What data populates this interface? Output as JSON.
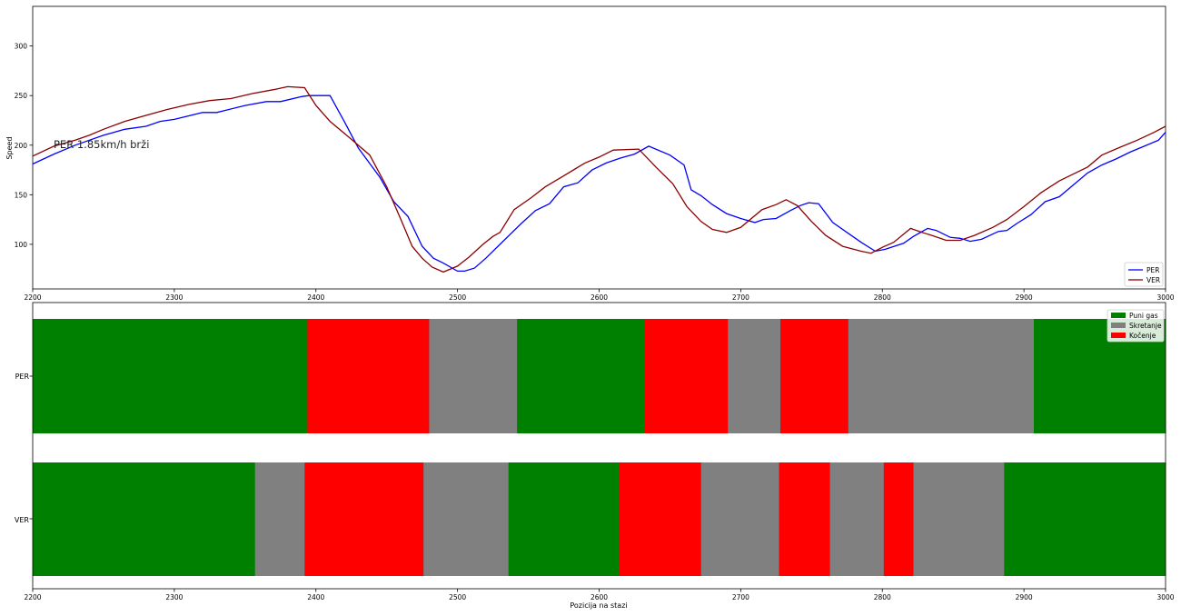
{
  "chart_data": [
    {
      "type": "line",
      "title": "",
      "xlabel": "",
      "ylabel": "Speed",
      "xlim": [
        2200,
        3000
      ],
      "ylim": [
        55,
        340
      ],
      "x_ticks": [
        "2200",
        "2300",
        "2400",
        "2500",
        "2600",
        "2700",
        "2800",
        "2900",
        "3000"
      ],
      "y_ticks": [
        "100",
        "150",
        "200",
        "250",
        "300"
      ],
      "annotation": "PER 1.85km/h brži",
      "legend_position": "lower right",
      "series": [
        {
          "name": "PER",
          "color": "#0000ff",
          "points": [
            [
              2200,
              181
            ],
            [
              2215,
              191
            ],
            [
              2230,
              200
            ],
            [
              2250,
              210
            ],
            [
              2265,
              216
            ],
            [
              2280,
              219
            ],
            [
              2290,
              224
            ],
            [
              2300,
              226
            ],
            [
              2320,
              233
            ],
            [
              2330,
              233
            ],
            [
              2350,
              240
            ],
            [
              2365,
              244
            ],
            [
              2375,
              244
            ],
            [
              2390,
              249
            ],
            [
              2395,
              250
            ],
            [
              2410,
              250
            ],
            [
              2420,
              224
            ],
            [
              2430,
              197
            ],
            [
              2445,
              168
            ],
            [
              2455,
              143
            ],
            [
              2465,
              128
            ],
            [
              2475,
              98
            ],
            [
              2483,
              86
            ],
            [
              2490,
              81
            ],
            [
              2500,
              73
            ],
            [
              2505,
              73
            ],
            [
              2512,
              76
            ],
            [
              2520,
              86
            ],
            [
              2530,
              100
            ],
            [
              2545,
              121
            ],
            [
              2555,
              134
            ],
            [
              2565,
              141
            ],
            [
              2575,
              158
            ],
            [
              2585,
              162
            ],
            [
              2595,
              175
            ],
            [
              2605,
              182
            ],
            [
              2615,
              187
            ],
            [
              2625,
              191
            ],
            [
              2635,
              199
            ],
            [
              2650,
              190
            ],
            [
              2660,
              180
            ],
            [
              2665,
              155
            ],
            [
              2672,
              149
            ],
            [
              2680,
              140
            ],
            [
              2690,
              131
            ],
            [
              2700,
              126
            ],
            [
              2710,
              122
            ],
            [
              2716,
              125
            ],
            [
              2725,
              126
            ],
            [
              2735,
              134
            ],
            [
              2742,
              139
            ],
            [
              2748,
              142
            ],
            [
              2755,
              141
            ],
            [
              2765,
              122
            ],
            [
              2775,
              112
            ],
            [
              2785,
              102
            ],
            [
              2795,
              93
            ],
            [
              2802,
              95
            ],
            [
              2815,
              101
            ],
            [
              2822,
              108
            ],
            [
              2832,
              116
            ],
            [
              2838,
              114
            ],
            [
              2848,
              107
            ],
            [
              2855,
              106
            ],
            [
              2862,
              103
            ],
            [
              2870,
              105
            ],
            [
              2882,
              113
            ],
            [
              2888,
              114
            ],
            [
              2895,
              121
            ],
            [
              2905,
              130
            ],
            [
              2915,
              143
            ],
            [
              2925,
              148
            ],
            [
              2935,
              160
            ],
            [
              2945,
              172
            ],
            [
              2955,
              180
            ],
            [
              2965,
              186
            ],
            [
              2975,
              193
            ],
            [
              2985,
              199
            ],
            [
              2995,
              205
            ],
            [
              3000,
              213
            ]
          ]
        },
        {
          "name": "VER",
          "color": "#8b0000",
          "points": [
            [
              2200,
              189
            ],
            [
              2215,
              199
            ],
            [
              2230,
              205
            ],
            [
              2240,
              210
            ],
            [
              2250,
              216
            ],
            [
              2265,
              224
            ],
            [
              2280,
              230
            ],
            [
              2295,
              236
            ],
            [
              2310,
              241
            ],
            [
              2325,
              245
            ],
            [
              2340,
              247
            ],
            [
              2355,
              252
            ],
            [
              2370,
              256
            ],
            [
              2380,
              259
            ],
            [
              2392,
              258
            ],
            [
              2400,
              240
            ],
            [
              2410,
              224
            ],
            [
              2425,
              206
            ],
            [
              2438,
              190
            ],
            [
              2450,
              158
            ],
            [
              2460,
              125
            ],
            [
              2468,
              98
            ],
            [
              2475,
              86
            ],
            [
              2482,
              77
            ],
            [
              2490,
              72
            ],
            [
              2500,
              78
            ],
            [
              2508,
              87
            ],
            [
              2518,
              100
            ],
            [
              2525,
              108
            ],
            [
              2530,
              112
            ],
            [
              2540,
              135
            ],
            [
              2552,
              147
            ],
            [
              2562,
              158
            ],
            [
              2575,
              169
            ],
            [
              2590,
              182
            ],
            [
              2600,
              188
            ],
            [
              2610,
              195
            ],
            [
              2628,
              196
            ],
            [
              2640,
              178
            ],
            [
              2652,
              161
            ],
            [
              2662,
              138
            ],
            [
              2672,
              123
            ],
            [
              2680,
              115
            ],
            [
              2690,
              112
            ],
            [
              2700,
              117
            ],
            [
              2715,
              135
            ],
            [
              2725,
              140
            ],
            [
              2732,
              145
            ],
            [
              2740,
              139
            ],
            [
              2750,
              123
            ],
            [
              2760,
              109
            ],
            [
              2772,
              98
            ],
            [
              2785,
              93
            ],
            [
              2792,
              91
            ],
            [
              2800,
              97
            ],
            [
              2808,
              102
            ],
            [
              2820,
              116
            ],
            [
              2828,
              112
            ],
            [
              2835,
              109
            ],
            [
              2845,
              104
            ],
            [
              2855,
              104
            ],
            [
              2865,
              109
            ],
            [
              2878,
              117
            ],
            [
              2888,
              125
            ],
            [
              2900,
              138
            ],
            [
              2912,
              152
            ],
            [
              2925,
              164
            ],
            [
              2935,
              171
            ],
            [
              2945,
              178
            ],
            [
              2955,
              190
            ],
            [
              2968,
              198
            ],
            [
              2980,
              205
            ],
            [
              2992,
              213
            ],
            [
              3000,
              219
            ]
          ]
        }
      ]
    },
    {
      "type": "bar",
      "orientation": "horizontal",
      "xlabel": "Pozicija na stazi",
      "xlim": [
        2200,
        3000
      ],
      "x_ticks": [
        "2200",
        "2300",
        "2400",
        "2500",
        "2600",
        "2700",
        "2800",
        "2900",
        "3000"
      ],
      "categories": [
        "PER",
        "VER"
      ],
      "legend_position": "upper right",
      "legend": [
        {
          "name": "Puni gas",
          "color": "#008000"
        },
        {
          "name": "Skretanje",
          "color": "#808080"
        },
        {
          "name": "Kočenje",
          "color": "#ff0000"
        }
      ],
      "rows": [
        {
          "driver": "PER",
          "segments": [
            {
              "start": 2200,
              "end": 2394,
              "state": "Puni gas"
            },
            {
              "start": 2394,
              "end": 2480,
              "state": "Kočenje"
            },
            {
              "start": 2480,
              "end": 2542,
              "state": "Skretanje"
            },
            {
              "start": 2542,
              "end": 2632,
              "state": "Puni gas"
            },
            {
              "start": 2632,
              "end": 2691,
              "state": "Kočenje"
            },
            {
              "start": 2691,
              "end": 2728,
              "state": "Skretanje"
            },
            {
              "start": 2728,
              "end": 2776,
              "state": "Kočenje"
            },
            {
              "start": 2776,
              "end": 2907,
              "state": "Skretanje"
            },
            {
              "start": 2907,
              "end": 3000,
              "state": "Puni gas"
            }
          ]
        },
        {
          "driver": "VER",
          "segments": [
            {
              "start": 2200,
              "end": 2357,
              "state": "Puni gas"
            },
            {
              "start": 2357,
              "end": 2392,
              "state": "Skretanje"
            },
            {
              "start": 2392,
              "end": 2476,
              "state": "Kočenje"
            },
            {
              "start": 2476,
              "end": 2536,
              "state": "Skretanje"
            },
            {
              "start": 2536,
              "end": 2614,
              "state": "Puni gas"
            },
            {
              "start": 2614,
              "end": 2672,
              "state": "Kočenje"
            },
            {
              "start": 2672,
              "end": 2727,
              "state": "Skretanje"
            },
            {
              "start": 2727,
              "end": 2763,
              "state": "Kočenje"
            },
            {
              "start": 2763,
              "end": 2801,
              "state": "Skretanje"
            },
            {
              "start": 2801,
              "end": 2822,
              "state": "Kočenje"
            },
            {
              "start": 2822,
              "end": 2886,
              "state": "Skretanje"
            },
            {
              "start": 2886,
              "end": 3000,
              "state": "Puni gas"
            }
          ]
        }
      ]
    }
  ]
}
